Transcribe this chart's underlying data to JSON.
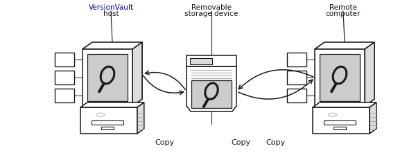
{
  "bg_color": "#ffffff",
  "dark": "#1a1a1a",
  "gray": "#aaaaaa",
  "light_gray": "#dddddd",
  "screen_gray": "#cccccc",
  "vv_color": "#0000cc",
  "labels": {
    "vv_line1": "VersionVault",
    "vv_line2": "host",
    "storage_line1": "Removable",
    "storage_line2": "storage device",
    "remote_line1": "Remote",
    "remote_line2": "computer",
    "copy1": "Copy",
    "copy2": "Copy"
  },
  "fig_w": 6.0,
  "fig_h": 2.21,
  "dpi": 100
}
